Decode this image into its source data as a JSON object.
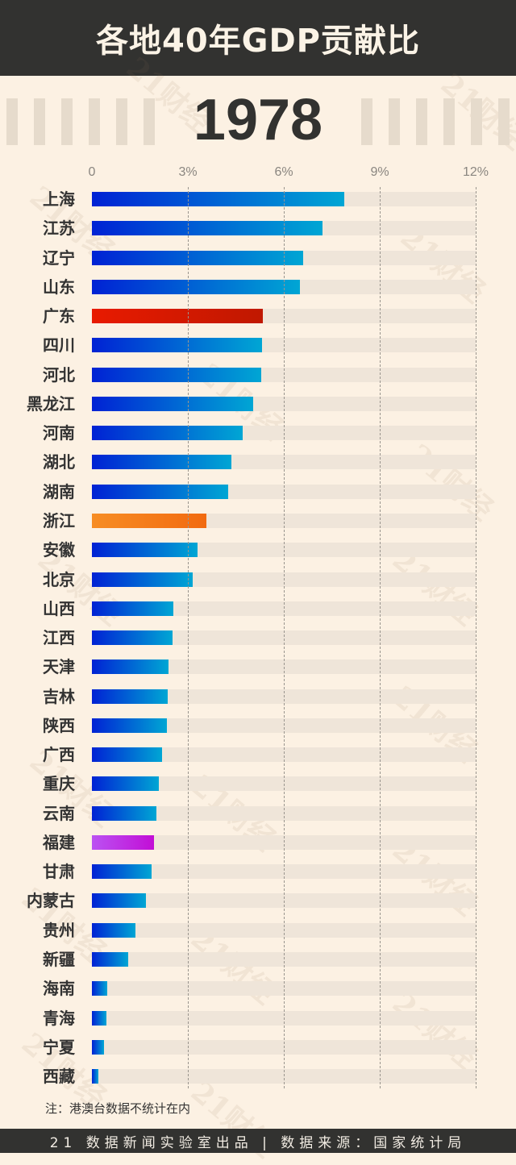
{
  "header": {
    "title": "各地40年GDP贡献比"
  },
  "year": "1978",
  "watermark_text": "21财经",
  "axis": {
    "ticks": [
      "0",
      "3%",
      "6%",
      "9%",
      "12%"
    ]
  },
  "note": "注：港澳台数据不统计在内",
  "footer": {
    "text": "21 数据新闻实验室出品 | 数据来源：国家统计局"
  },
  "colors": {
    "background": "#fcf1e3",
    "header_bg": "#323230",
    "default_bar": [
      "#0022d4",
      "#00a6d4"
    ],
    "guangdong": [
      "#e81a00",
      "#c01800"
    ],
    "zhejiang": [
      "#f78d24",
      "#f26a10"
    ],
    "fujian": [
      "#bb52f2",
      "#c20ed6"
    ]
  },
  "chart_data": {
    "type": "bar",
    "orientation": "horizontal",
    "title": "各地40年GDP贡献比",
    "subtitle": "1978",
    "xlabel": "",
    "ylabel": "",
    "xlim": [
      0,
      12
    ],
    "x_ticks": [
      "0",
      "3%",
      "6%",
      "9%",
      "12%"
    ],
    "grid": "vertical dashed",
    "unit": "%",
    "categories": [
      "上海",
      "江苏",
      "辽宁",
      "山东",
      "广东",
      "四川",
      "河北",
      "黑龙江",
      "河南",
      "湖北",
      "湖南",
      "浙江",
      "安徽",
      "北京",
      "山西",
      "江西",
      "天津",
      "吉林",
      "陕西",
      "广西",
      "重庆",
      "云南",
      "福建",
      "甘肃",
      "内蒙古",
      "贵州",
      "新疆",
      "海南",
      "青海",
      "宁夏",
      "西藏"
    ],
    "values": [
      7.89,
      7.21,
      6.6,
      6.5,
      5.34,
      5.32,
      5.29,
      5.04,
      4.71,
      4.36,
      4.26,
      3.58,
      3.3,
      3.15,
      2.55,
      2.52,
      2.39,
      2.37,
      2.34,
      2.19,
      2.09,
      2.02,
      1.94,
      1.87,
      1.69,
      1.36,
      1.13,
      0.48,
      0.45,
      0.38,
      0.2
    ],
    "highlights": {
      "广东": "red",
      "浙江": "orange",
      "福建": "purple"
    },
    "annotations": [
      "注：港澳台数据不统计在内"
    ]
  }
}
